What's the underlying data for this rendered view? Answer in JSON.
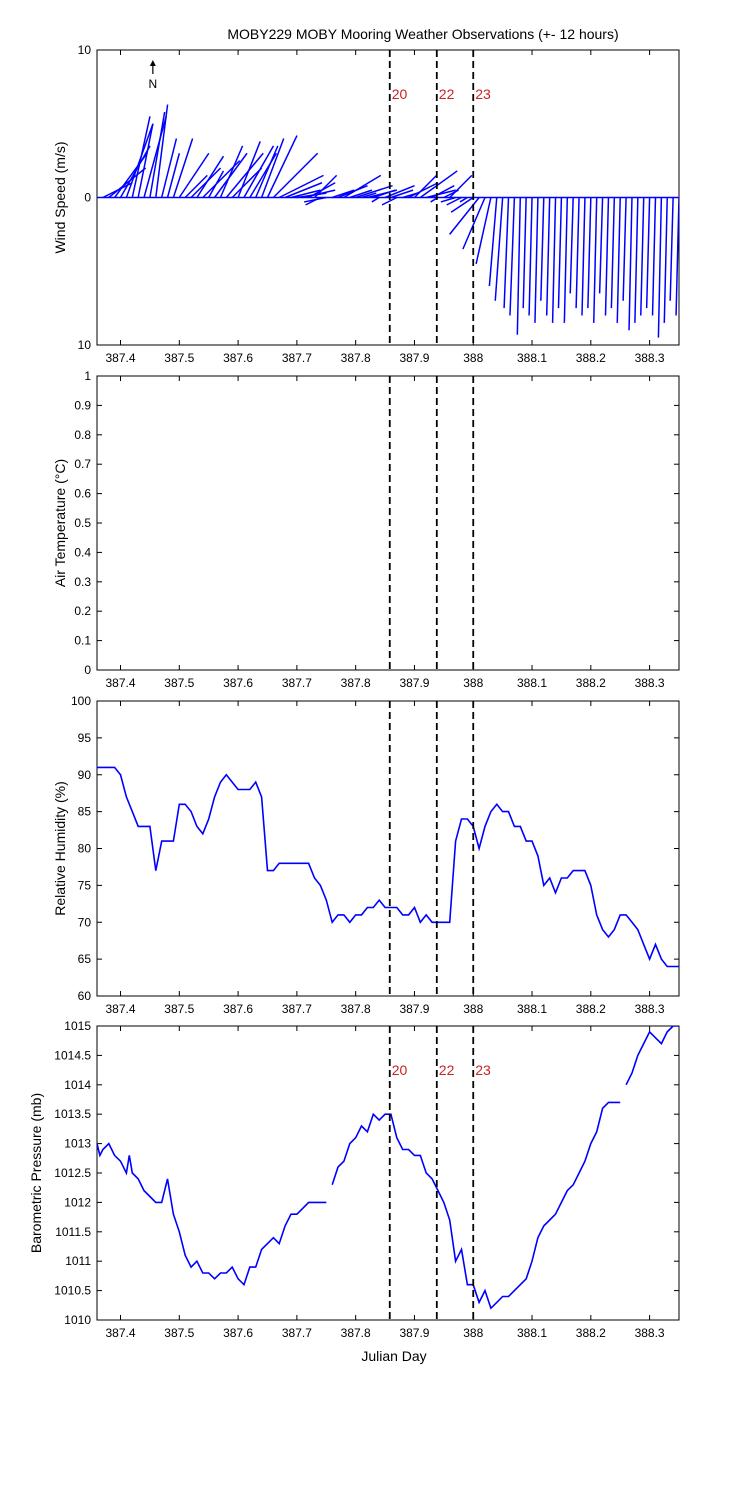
{
  "title": "MOBY229 MOBY Mooring Weather Observations (+- 12 hours)",
  "colors": {
    "line": "#0000ff",
    "event_label": "#cc2222",
    "axes": "#000000"
  },
  "events": [
    {
      "x": 387.858,
      "label": "20"
    },
    {
      "x": 387.938,
      "label": "22"
    },
    {
      "x": 388.0,
      "label": "23"
    }
  ],
  "north_label": "N",
  "x_axis": {
    "label": "Julian Day",
    "range": [
      387.36,
      388.35
    ],
    "ticks": [
      387.4,
      387.5,
      387.6,
      387.7,
      387.8,
      387.9,
      388.0,
      388.1,
      388.2,
      388.3
    ],
    "tick_labels": [
      "387.4",
      "387.5",
      "387.6",
      "387.7",
      "387.8",
      "387.9",
      "388",
      "388.1",
      "388.2",
      "388.3"
    ]
  },
  "chart_data": [
    {
      "type": "line",
      "subtype": "wind-vector-stick",
      "ylabel": "Wind Speed (m/s)",
      "ylim": [
        -10,
        10
      ],
      "yticks": [
        10,
        0,
        10
      ],
      "show_event_labels": true,
      "wind_x": [
        387.37,
        387.38,
        387.39,
        387.4,
        387.41,
        387.42,
        387.43,
        387.44,
        387.45,
        387.46,
        387.47,
        387.48,
        387.49,
        387.5,
        387.51,
        387.52,
        387.53,
        387.54,
        387.55,
        387.56,
        387.57,
        387.58,
        387.59,
        387.6,
        387.61,
        387.62,
        387.63,
        387.64,
        387.65,
        387.66,
        387.67,
        387.68,
        387.69,
        387.7,
        387.71,
        387.72,
        387.73,
        387.74,
        387.75,
        387.76,
        387.77,
        387.78,
        387.79,
        387.8,
        387.81,
        387.82,
        387.83,
        387.84,
        387.85,
        387.86,
        387.87,
        387.88,
        387.89,
        387.9,
        387.91,
        387.92,
        387.93,
        387.94,
        387.95,
        387.96,
        387.97,
        387.98,
        387.99,
        388.0,
        388.01,
        388.02,
        388.03,
        388.04,
        388.05,
        388.06,
        388.07,
        388.08,
        388.09,
        388.1,
        388.11,
        388.12,
        388.13,
        388.14,
        388.15,
        388.16,
        388.17,
        388.18,
        388.19,
        388.2,
        388.21,
        388.22,
        388.23,
        388.24,
        388.25,
        388.26,
        388.27,
        388.28,
        388.29,
        388.3,
        388.31,
        388.32,
        388.33,
        388.34,
        388.35
      ],
      "wind_u": [
        2.0,
        2.5,
        2.2,
        2.0,
        1.8,
        1.2,
        1.0,
        1.5,
        1.0,
        0.8,
        1.0,
        0.8,
        1.3,
        2.0,
        1.5,
        2.0,
        1.8,
        2.5,
        1.0,
        2.2,
        1.5,
        2.5,
        2.0,
        1.5,
        2.0,
        1.8,
        1.5,
        1.5,
        2.0,
        3.0,
        3.0,
        2.5,
        2.0,
        2.0,
        2.2,
        1.8,
        1.5,
        -1.0,
        -1.5,
        1.5,
        2.0,
        2.5,
        1.5,
        2.5,
        1.0,
        2.0,
        1.5,
        -0.5,
        2.0,
        1.5,
        -1.0,
        1.0,
        2.0,
        1.5,
        2.5,
        2.0,
        1.5,
        -0.5,
        1.0,
        1.5,
        -1.0,
        -1.0,
        -0.5,
        -1.5,
        -2.0,
        -1.5,
        -1.0,
        -0.5,
        -0.5,
        -0.3,
        -0.3,
        -0.2,
        -0.2,
        -0.2,
        -0.2,
        -0.2,
        -0.2,
        -0.2,
        -0.2,
        -0.2,
        -0.2,
        -0.2,
        -0.2,
        -0.2,
        -0.2,
        -0.2,
        -0.2,
        -0.2,
        -0.2,
        -0.2,
        -0.2,
        -0.2,
        -0.2,
        -0.2,
        -0.2,
        -0.2,
        -0.2,
        -0.2,
        -0.2
      ],
      "wind_v": [
        1.0,
        2.0,
        3.0,
        3.5,
        5.0,
        5.5,
        5.0,
        5.5,
        5.8,
        6.3,
        4.0,
        3.0,
        4.0,
        3.0,
        1.5,
        2.0,
        2.8,
        2.5,
        1.8,
        3.0,
        3.5,
        3.0,
        2.0,
        3.8,
        3.5,
        3.0,
        3.5,
        4.0,
        4.2,
        3.0,
        1.5,
        1.0,
        0.5,
        0.3,
        0.5,
        1.0,
        1.5,
        -0.5,
        -0.3,
        0.5,
        0.8,
        1.5,
        0.5,
        0.8,
        0.3,
        0.5,
        0.5,
        -0.3,
        0.8,
        0.5,
        -0.5,
        0.3,
        1.0,
        1.5,
        1.8,
        0.5,
        0.8,
        -0.3,
        0.5,
        1.5,
        -0.3,
        -0.5,
        -0.3,
        -1.0,
        -2.5,
        -3.5,
        -4.5,
        -6.0,
        -7.0,
        -7.5,
        -8.0,
        -9.3,
        -7.5,
        -8.0,
        -8.5,
        -7.0,
        -8.0,
        -8.5,
        -7.5,
        -8.5,
        -6.5,
        -7.5,
        -8.0,
        -7.5,
        -8.5,
        -6.5,
        -8.0,
        -7.5,
        -8.5,
        -7.0,
        -9.0,
        -8.5,
        -8.0,
        -7.5,
        -8.0,
        -9.5,
        -8.5,
        -7.0,
        -8.0,
        -8.5
      ]
    },
    {
      "type": "line",
      "ylabel": "Air Temperature (°C)",
      "ylim": [
        0,
        1
      ],
      "yticks": [
        0,
        0.1,
        0.2,
        0.3,
        0.4,
        0.5,
        0.6,
        0.7,
        0.8,
        0.9,
        1
      ],
      "series": [
        {
          "x": [],
          "y": []
        }
      ]
    },
    {
      "type": "line",
      "ylabel": "Relative Humidity (%)",
      "ylim": [
        60,
        100
      ],
      "yticks": [
        60,
        65,
        70,
        75,
        80,
        85,
        90,
        95,
        100
      ],
      "series": [
        {
          "x": [
            387.36,
            387.37,
            387.38,
            387.39,
            387.4,
            387.41,
            387.42,
            387.43,
            387.44,
            387.45,
            387.46,
            387.47,
            387.48,
            387.49,
            387.5,
            387.51,
            387.52,
            387.53,
            387.54,
            387.55,
            387.56,
            387.57,
            387.58,
            387.59,
            387.6,
            387.61,
            387.62,
            387.63,
            387.64,
            387.65,
            387.66,
            387.67,
            387.68,
            387.69,
            387.7,
            387.71,
            387.72,
            387.73,
            387.74,
            387.75,
            387.76,
            387.77,
            387.78,
            387.79,
            387.8,
            387.81,
            387.82,
            387.83,
            387.84,
            387.85,
            387.86,
            387.87,
            387.88,
            387.89,
            387.9,
            387.91,
            387.92,
            387.93,
            387.94,
            387.95,
            387.96,
            387.97,
            387.98,
            387.99,
            388.0,
            388.01,
            388.02,
            388.03,
            388.04,
            388.05,
            388.06,
            388.07,
            388.08,
            388.09,
            388.1,
            388.11,
            388.12,
            388.13,
            388.14,
            388.15,
            388.16,
            388.17,
            388.18,
            388.19,
            388.2,
            388.21,
            388.22,
            388.23,
            388.24,
            388.25,
            388.26,
            388.27,
            388.28,
            388.29,
            388.3,
            388.31,
            388.32,
            388.33,
            388.34,
            388.35
          ],
          "y": [
            91,
            91,
            91,
            91,
            90,
            87,
            85,
            83,
            83,
            83,
            77,
            81,
            81,
            81,
            86,
            86,
            85,
            83,
            82,
            84,
            87,
            89,
            90,
            89,
            88,
            88,
            88,
            89,
            87,
            77,
            77,
            78,
            78,
            78,
            78,
            78,
            78,
            76,
            75,
            73,
            70,
            71,
            71,
            70,
            71,
            71,
            72,
            72,
            73,
            72,
            72,
            72,
            71,
            71,
            72,
            70,
            71,
            70,
            70,
            70,
            70,
            81,
            84,
            84,
            83,
            80,
            83,
            85,
            86,
            85,
            85,
            83,
            83,
            81,
            81,
            79,
            75,
            76,
            74,
            76,
            76,
            77,
            77,
            77,
            75,
            71,
            69,
            68,
            69,
            71,
            71,
            70,
            69,
            67,
            65,
            67,
            65,
            64,
            64,
            64
          ]
        }
      ]
    },
    {
      "type": "line",
      "ylabel": "Barometric Pressure (mb)",
      "ylim": [
        1010,
        1015
      ],
      "yticks": [
        1010,
        1010.5,
        1011,
        1011.5,
        1012,
        1012.5,
        1013,
        1013.5,
        1014,
        1014.5,
        1015
      ],
      "show_event_labels": true,
      "series": [
        {
          "x": [
            387.36,
            387.365,
            387.37,
            387.38,
            387.39,
            387.4,
            387.41,
            387.415,
            387.42,
            387.43,
            387.44,
            387.45,
            387.46,
            387.47,
            387.48,
            387.49,
            387.5,
            387.51,
            387.52,
            387.53,
            387.54,
            387.55,
            387.56,
            387.57,
            387.58,
            387.59,
            387.6,
            387.61,
            387.62,
            387.63,
            387.64,
            387.65,
            387.66,
            387.67,
            387.68,
            387.69,
            387.7,
            387.71,
            387.72,
            387.73,
            387.74,
            387.75
          ],
          "y": [
            1013.0,
            1012.8,
            1012.9,
            1013.0,
            1012.8,
            1012.7,
            1012.5,
            1012.8,
            1012.5,
            1012.4,
            1012.2,
            1012.1,
            1012.0,
            1012.0,
            1012.4,
            1011.8,
            1011.5,
            1011.1,
            1010.9,
            1011.0,
            1010.8,
            1010.8,
            1010.7,
            1010.8,
            1010.8,
            1010.9,
            1010.7,
            1010.6,
            1010.9,
            1010.9,
            1011.2,
            1011.3,
            1011.4,
            1011.3,
            1011.6,
            1011.8,
            1011.8,
            1011.9,
            1012.0,
            1012.0,
            1012.0,
            1012.0
          ]
        },
        {
          "x": [
            387.76,
            387.77,
            387.78,
            387.79,
            387.8,
            387.81,
            387.82,
            387.83,
            387.84,
            387.85,
            387.86,
            387.87,
            387.88,
            387.89,
            387.9,
            387.91,
            387.92,
            387.93,
            387.94,
            387.95,
            387.96,
            387.97,
            387.98,
            387.99,
            388.0,
            388.01,
            388.02,
            388.03,
            388.04,
            388.05,
            388.06,
            388.07,
            388.08,
            388.09,
            388.1,
            388.11,
            388.12,
            388.13,
            388.14,
            388.15,
            388.16,
            388.17,
            388.18,
            388.19,
            388.2,
            388.21,
            388.22,
            388.23,
            388.24,
            388.25
          ],
          "y": [
            1012.3,
            1012.6,
            1012.7,
            1013.0,
            1013.1,
            1013.3,
            1013.2,
            1013.5,
            1013.4,
            1013.5,
            1013.5,
            1013.1,
            1012.9,
            1012.9,
            1012.8,
            1012.8,
            1012.5,
            1012.4,
            1012.2,
            1012.0,
            1011.7,
            1011.0,
            1011.2,
            1010.6,
            1010.6,
            1010.3,
            1010.5,
            1010.2,
            1010.3,
            1010.4,
            1010.4,
            1010.5,
            1010.6,
            1010.7,
            1011.0,
            1011.4,
            1011.6,
            1011.7,
            1011.8,
            1012.0,
            1012.2,
            1012.3,
            1012.5,
            1012.7,
            1013.0,
            1013.2,
            1013.6,
            1013.7,
            1013.7,
            1013.7
          ]
        },
        {
          "x": [
            388.26,
            388.27,
            388.28,
            388.29,
            388.3,
            388.31,
            388.32,
            388.33,
            388.34,
            388.35
          ],
          "y": [
            1014.0,
            1014.2,
            1014.5,
            1014.7,
            1014.9,
            1014.8,
            1014.7,
            1014.9,
            1015.0,
            1015.0
          ]
        }
      ]
    }
  ]
}
